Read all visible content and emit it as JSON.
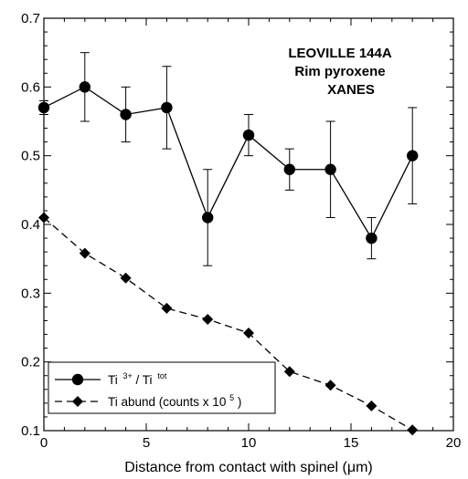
{
  "chart_data": {
    "type": "line",
    "xlabel": "Distance from contact with spinel (μm)",
    "ylabel": "",
    "xlim": [
      0,
      20
    ],
    "ylim": [
      0.1,
      0.7
    ],
    "x_ticks": [
      "0",
      "5",
      "10",
      "15",
      "20"
    ],
    "y_ticks": [
      "0.1",
      "0.2",
      "0.3",
      "0.4",
      "0.5",
      "0.6",
      "0.7"
    ],
    "grid": false,
    "legend_position": "bottom-left",
    "annotation": [
      "LEOVILLE 144A",
      "Rim pyroxene",
      "XANES"
    ],
    "series": [
      {
        "legend_main": "Ti",
        "legend_sup1": "3+",
        "legend_mid": "/ Ti",
        "legend_sup2": "tot",
        "marker": "circle",
        "line_style": "solid",
        "x": [
          0,
          2,
          4,
          6,
          8,
          10,
          12,
          14,
          16,
          18
        ],
        "y": [
          0.57,
          0.6,
          0.56,
          0.57,
          0.41,
          0.53,
          0.48,
          0.48,
          0.38,
          0.5
        ],
        "err_low": [
          0.56,
          0.55,
          0.52,
          0.51,
          0.34,
          0.5,
          0.45,
          0.41,
          0.35,
          0.43
        ],
        "err_high": [
          0.58,
          0.65,
          0.6,
          0.63,
          0.48,
          0.56,
          0.51,
          0.55,
          0.41,
          0.57
        ]
      },
      {
        "legend_main": "Ti abund (counts x 10",
        "legend_sup": "5",
        "legend_end": ")",
        "marker": "diamond",
        "line_style": "dashed",
        "x": [
          0,
          2,
          4,
          6,
          8,
          10,
          12,
          14,
          16,
          18
        ],
        "y": [
          0.41,
          0.358,
          0.322,
          0.278,
          0.262,
          0.242,
          0.186,
          0.166,
          0.136,
          0.101
        ]
      }
    ]
  }
}
